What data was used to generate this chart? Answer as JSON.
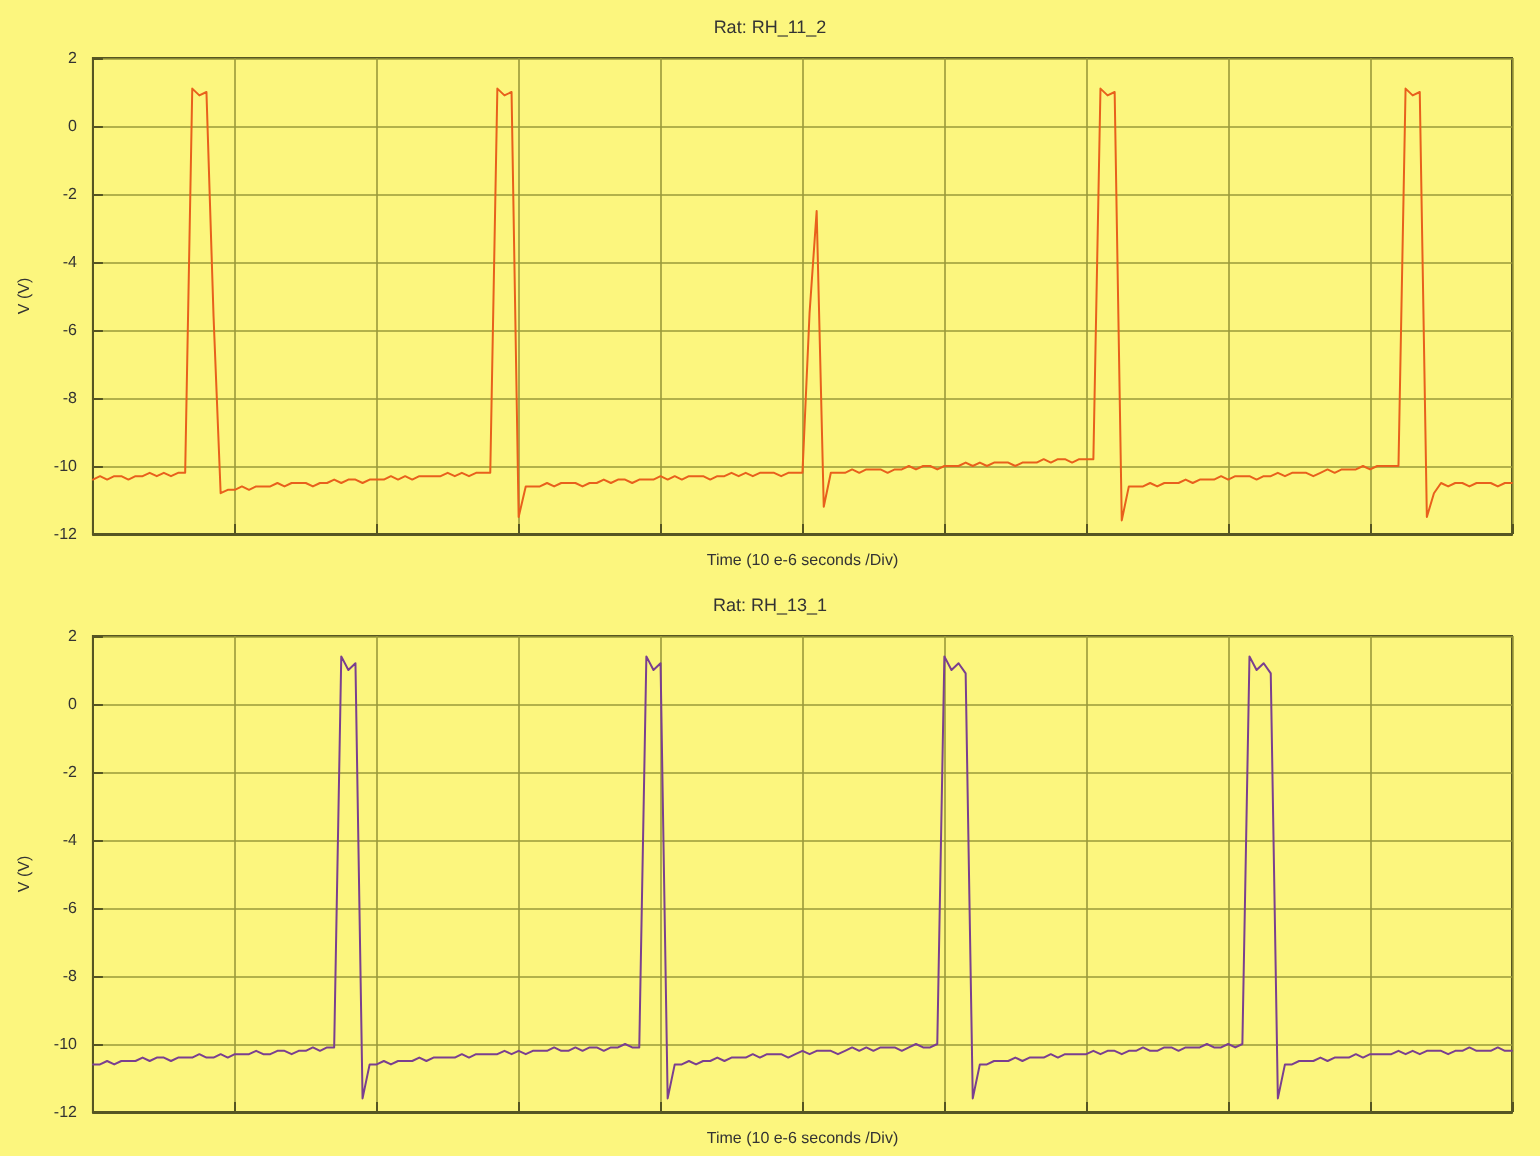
{
  "chart_data": [
    {
      "type": "line",
      "title": "Rat: RH_11_2",
      "xlabel": "Time (10 e-6 seconds /Div)",
      "ylabel": "V (V)",
      "categories": [
        null,
        null,
        null,
        null,
        null,
        null,
        null,
        null,
        null,
        null,
        null,
        null,
        null,
        null,
        null,
        null,
        null,
        null,
        null,
        null,
        null,
        null,
        null,
        null,
        null,
        null,
        null,
        null,
        null,
        null,
        null,
        null,
        null,
        null,
        null,
        null,
        null,
        null,
        null,
        null,
        null,
        null,
        null,
        null,
        null,
        null,
        null,
        null,
        null,
        null,
        null,
        null,
        null,
        null,
        null,
        null,
        null,
        null,
        null,
        null,
        null,
        null,
        null,
        null,
        null,
        null,
        null,
        null,
        null,
        null,
        null,
        null,
        null,
        null,
        null,
        null,
        null,
        null,
        null,
        null,
        null,
        null,
        null,
        null,
        null,
        null,
        null,
        null,
        null,
        null,
        null,
        null,
        null,
        null,
        null,
        null,
        null,
        null,
        null,
        null,
        null,
        null,
        null,
        null,
        null,
        null,
        null,
        null,
        null,
        null,
        null,
        null,
        null,
        null,
        null,
        null,
        null,
        null,
        null,
        null,
        null,
        null,
        null,
        null,
        null,
        null,
        null,
        null,
        null,
        null,
        null,
        null,
        null,
        null,
        null,
        null,
        null,
        null,
        null,
        null,
        null,
        null,
        null,
        null,
        null,
        null,
        null,
        null,
        null,
        null,
        null,
        null,
        null,
        null,
        null,
        null,
        null,
        null,
        null,
        null,
        null,
        null,
        null,
        null,
        null,
        null,
        null,
        null,
        null,
        null,
        null,
        null,
        null,
        null,
        null,
        null,
        null,
        null,
        null,
        null,
        null,
        null,
        null,
        null,
        null,
        null,
        null,
        null,
        null,
        null,
        null,
        null,
        null,
        null,
        null,
        null,
        null,
        null,
        null,
        null,
        null
      ],
      "series": [
        {
          "color": "#e8601c",
          "values": [
            -10.4,
            -10.3,
            -10.4,
            -10.3,
            -10.3,
            -10.4,
            -10.3,
            -10.3,
            -10.2,
            -10.3,
            -10.2,
            -10.3,
            -10.2,
            -10.2,
            1.1,
            0.9,
            1.0,
            -5.6,
            -10.8,
            -10.7,
            -10.7,
            -10.6,
            -10.7,
            -10.6,
            -10.6,
            -10.6,
            -10.5,
            -10.6,
            -10.5,
            -10.5,
            -10.5,
            -10.6,
            -10.5,
            -10.5,
            -10.4,
            -10.5,
            -10.4,
            -10.4,
            -10.5,
            -10.4,
            -10.4,
            -10.4,
            -10.3,
            -10.4,
            -10.3,
            -10.4,
            -10.3,
            -10.3,
            -10.3,
            -10.3,
            -10.2,
            -10.3,
            -10.2,
            -10.3,
            -10.2,
            -10.2,
            -10.2,
            1.1,
            0.9,
            1.0,
            -11.5,
            -10.6,
            -10.6,
            -10.6,
            -10.5,
            -10.6,
            -10.5,
            -10.5,
            -10.5,
            -10.6,
            -10.5,
            -10.5,
            -10.4,
            -10.5,
            -10.4,
            -10.4,
            -10.5,
            -10.4,
            -10.4,
            -10.4,
            -10.3,
            -10.4,
            -10.3,
            -10.4,
            -10.3,
            -10.3,
            -10.3,
            -10.4,
            -10.3,
            -10.3,
            -10.2,
            -10.3,
            -10.2,
            -10.3,
            -10.2,
            -10.2,
            -10.2,
            -10.3,
            -10.2,
            -10.2,
            -10.2,
            -5.5,
            -2.5,
            -11.2,
            -10.2,
            -10.2,
            -10.2,
            -10.1,
            -10.2,
            -10.1,
            -10.1,
            -10.1,
            -10.2,
            -10.1,
            -10.1,
            -10.0,
            -10.1,
            -10.0,
            -10.0,
            -10.1,
            -10.0,
            -10.0,
            -10.0,
            -9.9,
            -10.0,
            -9.9,
            -10.0,
            -9.9,
            -9.9,
            -9.9,
            -10.0,
            -9.9,
            -9.9,
            -9.9,
            -9.8,
            -9.9,
            -9.8,
            -9.8,
            -9.9,
            -9.8,
            -9.8,
            -9.8,
            1.1,
            0.9,
            1.0,
            -11.6,
            -10.6,
            -10.6,
            -10.6,
            -10.5,
            -10.6,
            -10.5,
            -10.5,
            -10.5,
            -10.4,
            -10.5,
            -10.4,
            -10.4,
            -10.4,
            -10.3,
            -10.4,
            -10.3,
            -10.3,
            -10.3,
            -10.4,
            -10.3,
            -10.3,
            -10.2,
            -10.3,
            -10.2,
            -10.2,
            -10.2,
            -10.3,
            -10.2,
            -10.1,
            -10.2,
            -10.1,
            -10.1,
            -10.1,
            -10.0,
            -10.1,
            -10.0,
            -10.0,
            -10.0,
            -10.0,
            1.1,
            0.9,
            1.0,
            -11.5,
            -10.8,
            -10.5,
            -10.6,
            -10.5,
            -10.5,
            -10.6,
            -10.5,
            -10.5,
            -10.5,
            -10.6,
            -10.5,
            -10.5
          ]
        }
      ],
      "ylim": [
        -12,
        2
      ],
      "yticks": [
        -12,
        -10,
        -8,
        -6,
        -4,
        -2,
        0,
        2
      ],
      "grid": true,
      "line_style": "solid",
      "tick_labels": "y"
    },
    {
      "type": "line",
      "title": "Rat: RH_13_1",
      "xlabel": "Time (10 e-6 seconds /Div)",
      "ylabel": "V (V)",
      "categories": [
        null,
        null,
        null,
        null,
        null,
        null,
        null,
        null,
        null,
        null,
        null,
        null,
        null,
        null,
        null,
        null,
        null,
        null,
        null,
        null,
        null,
        null,
        null,
        null,
        null,
        null,
        null,
        null,
        null,
        null,
        null,
        null,
        null,
        null,
        null,
        null,
        null,
        null,
        null,
        null,
        null,
        null,
        null,
        null,
        null,
        null,
        null,
        null,
        null,
        null,
        null,
        null,
        null,
        null,
        null,
        null,
        null,
        null,
        null,
        null,
        null,
        null,
        null,
        null,
        null,
        null,
        null,
        null,
        null,
        null,
        null,
        null,
        null,
        null,
        null,
        null,
        null,
        null,
        null,
        null,
        null,
        null,
        null,
        null,
        null,
        null,
        null,
        null,
        null,
        null,
        null,
        null,
        null,
        null,
        null,
        null,
        null,
        null,
        null,
        null,
        null,
        null,
        null,
        null,
        null,
        null,
        null,
        null,
        null,
        null,
        null,
        null,
        null,
        null,
        null,
        null,
        null,
        null,
        null,
        null,
        null,
        null,
        null,
        null,
        null,
        null,
        null,
        null,
        null,
        null,
        null,
        null,
        null,
        null,
        null,
        null,
        null,
        null,
        null,
        null,
        null,
        null,
        null,
        null,
        null,
        null,
        null,
        null,
        null,
        null,
        null,
        null,
        null,
        null,
        null,
        null,
        null,
        null,
        null,
        null,
        null,
        null,
        null,
        null,
        null,
        null,
        null,
        null,
        null,
        null,
        null,
        null,
        null,
        null,
        null,
        null,
        null,
        null,
        null,
        null,
        null,
        null,
        null,
        null,
        null,
        null,
        null,
        null,
        null,
        null,
        null,
        null,
        null,
        null,
        null,
        null,
        null,
        null,
        null,
        null,
        null
      ],
      "series": [
        {
          "color": "#7a3f8f",
          "values": [
            -10.6,
            -10.6,
            -10.5,
            -10.6,
            -10.5,
            -10.5,
            -10.5,
            -10.4,
            -10.5,
            -10.4,
            -10.4,
            -10.5,
            -10.4,
            -10.4,
            -10.4,
            -10.3,
            -10.4,
            -10.4,
            -10.3,
            -10.4,
            -10.3,
            -10.3,
            -10.3,
            -10.2,
            -10.3,
            -10.3,
            -10.2,
            -10.2,
            -10.3,
            -10.2,
            -10.2,
            -10.1,
            -10.2,
            -10.1,
            -10.1,
            1.4,
            1.0,
            1.2,
            -11.6,
            -10.6,
            -10.6,
            -10.5,
            -10.6,
            -10.5,
            -10.5,
            -10.5,
            -10.4,
            -10.5,
            -10.4,
            -10.4,
            -10.4,
            -10.4,
            -10.3,
            -10.4,
            -10.3,
            -10.3,
            -10.3,
            -10.3,
            -10.2,
            -10.3,
            -10.2,
            -10.3,
            -10.2,
            -10.2,
            -10.2,
            -10.1,
            -10.2,
            -10.2,
            -10.1,
            -10.2,
            -10.1,
            -10.1,
            -10.2,
            -10.1,
            -10.1,
            -10.0,
            -10.1,
            -10.1,
            1.4,
            1.0,
            1.2,
            -11.6,
            -10.6,
            -10.6,
            -10.5,
            -10.6,
            -10.5,
            -10.5,
            -10.4,
            -10.5,
            -10.4,
            -10.4,
            -10.4,
            -10.3,
            -10.4,
            -10.3,
            -10.3,
            -10.3,
            -10.4,
            -10.3,
            -10.2,
            -10.3,
            -10.2,
            -10.2,
            -10.2,
            -10.3,
            -10.2,
            -10.1,
            -10.2,
            -10.1,
            -10.2,
            -10.1,
            -10.1,
            -10.1,
            -10.2,
            -10.1,
            -10.0,
            -10.1,
            -10.1,
            -10.0,
            1.4,
            1.0,
            1.2,
            0.9,
            -11.6,
            -10.6,
            -10.6,
            -10.5,
            -10.5,
            -10.5,
            -10.4,
            -10.5,
            -10.4,
            -10.4,
            -10.4,
            -10.3,
            -10.4,
            -10.3,
            -10.3,
            -10.3,
            -10.3,
            -10.2,
            -10.3,
            -10.2,
            -10.2,
            -10.3,
            -10.2,
            -10.2,
            -10.1,
            -10.2,
            -10.2,
            -10.1,
            -10.1,
            -10.2,
            -10.1,
            -10.1,
            -10.1,
            -10.0,
            -10.1,
            -10.1,
            -10.0,
            -10.1,
            -10.0,
            1.4,
            1.0,
            1.2,
            0.9,
            -11.6,
            -10.6,
            -10.6,
            -10.5,
            -10.5,
            -10.5,
            -10.4,
            -10.5,
            -10.4,
            -10.4,
            -10.4,
            -10.3,
            -10.4,
            -10.3,
            -10.3,
            -10.3,
            -10.3,
            -10.2,
            -10.3,
            -10.2,
            -10.3,
            -10.2,
            -10.2,
            -10.2,
            -10.3,
            -10.2,
            -10.2,
            -10.1,
            -10.2,
            -10.2,
            -10.2,
            -10.1,
            -10.2,
            -10.2
          ]
        }
      ],
      "ylim": [
        -12,
        2
      ],
      "yticks": [
        -12,
        -10,
        -8,
        -6,
        -4,
        -2,
        0,
        2
      ],
      "grid": true,
      "line_style": "solid",
      "tick_labels": "y"
    }
  ]
}
